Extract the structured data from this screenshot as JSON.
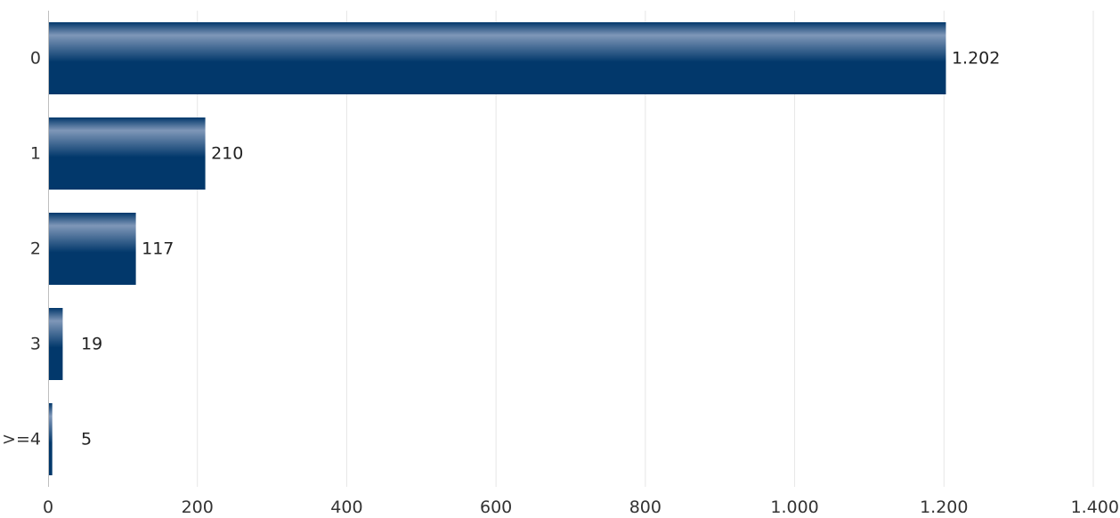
{
  "chart_data": {
    "type": "bar",
    "orientation": "horizontal",
    "categories": [
      "0",
      "1",
      "2",
      "3",
      ">=4"
    ],
    "values": [
      1202,
      210,
      117,
      19,
      5
    ],
    "value_labels": [
      "1.202",
      "210",
      "117",
      "19",
      "5"
    ],
    "title": "",
    "xlabel": "",
    "ylabel": "",
    "xlim": [
      0,
      1400
    ],
    "x_ticks": [
      0,
      200,
      400,
      600,
      800,
      1000,
      1200,
      1400
    ],
    "x_tick_labels": [
      "0",
      "200",
      "400",
      "600",
      "800",
      "1.000",
      "1.200",
      "1.400"
    ],
    "grid": true,
    "legend": "none",
    "colors": {
      "bar_dark": "#02386b",
      "bar_light": "#7f97b8",
      "grid": "#e6e6e6",
      "axis": "#bfbfbf",
      "text": "#333333"
    }
  }
}
